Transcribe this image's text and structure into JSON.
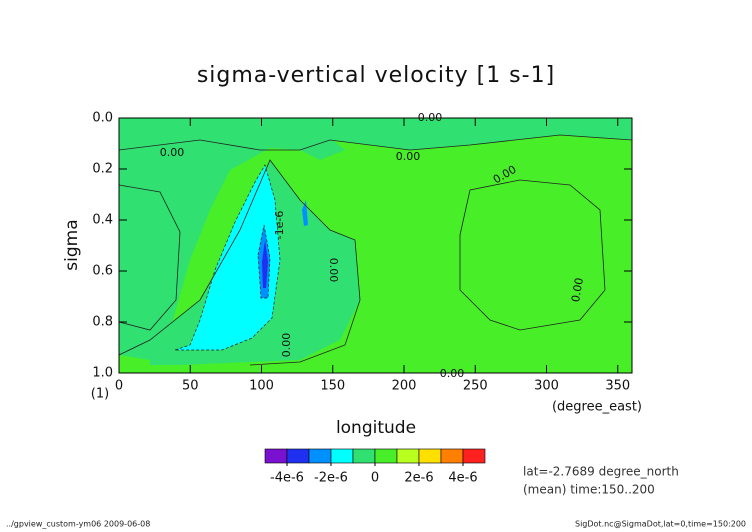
{
  "chart_data": {
    "type": "contour",
    "title": "sigma-vertical velocity [1 s-1]",
    "x_label": "longitude",
    "x_unit": "(degree_east)",
    "y_label": "sigma",
    "y_unit": "(1)",
    "xlim": [
      0,
      360
    ],
    "xticks": [
      0,
      50,
      100,
      150,
      200,
      250,
      300,
      350
    ],
    "ylim": [
      1,
      0
    ],
    "yticks": [
      {
        "value": 0,
        "label": "0.0"
      },
      0.2,
      0.4,
      0.6,
      0.8,
      {
        "value": 1,
        "label": "1.0"
      }
    ],
    "contour_labels": [
      "0.00",
      "0.00",
      "0.00",
      "0.00",
      "0.00",
      "0.00",
      "0.00",
      "0.00",
      "-1e-6"
    ],
    "colorbar": {
      "levels": [
        -5e-06,
        -4e-06,
        -3e-06,
        -2e-06,
        -1e-06,
        0,
        1e-06,
        2e-06,
        3e-06,
        4e-06,
        5e-06
      ],
      "colors": [
        "#7a10d0",
        "#2030f0",
        "#0090ff",
        "#00ffff",
        "#30e070",
        "#48ee28",
        "#b8ff20",
        "#ffe000",
        "#ff8000",
        "#ff2020"
      ],
      "ticks": [
        {
          "value": -4e-06,
          "label": "-4e-6"
        },
        {
          "value": -2e-06,
          "label": "-2e-6"
        },
        0,
        {
          "value": 2e-06,
          "label": "2e-6"
        },
        {
          "value": 4e-06,
          "label": "4e-6"
        }
      ]
    },
    "annotations": [
      "lat=-2.7689 degree_north",
      "(mean) time:150..200"
    ],
    "footer_left": "../gpview_custom-ym06  2009-06-08",
    "footer_right": "SigDot.nc@SigmaDot,lat=0,time=150:200"
  }
}
